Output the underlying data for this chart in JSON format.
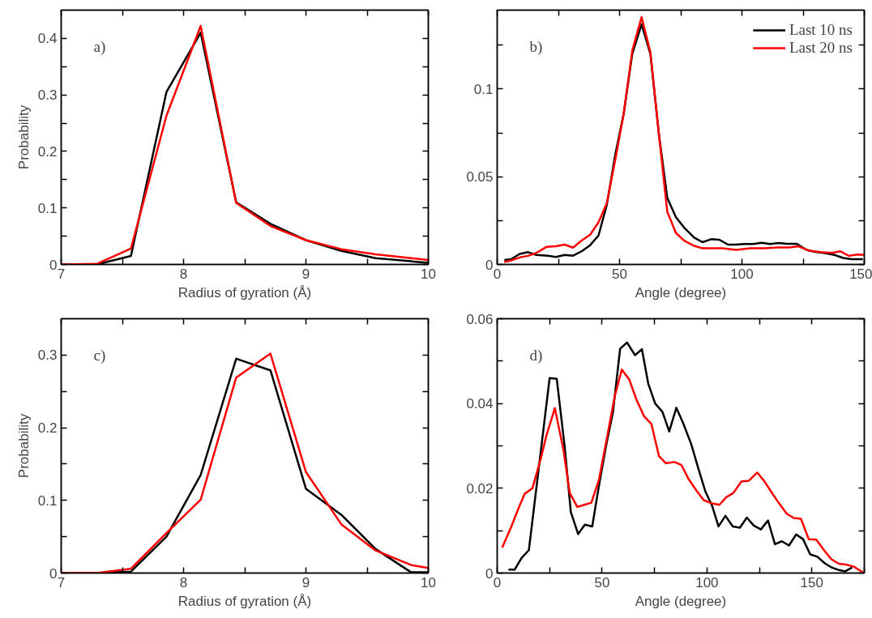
{
  "chart_data": [
    {
      "type": "line",
      "xlabel": "Radius of gyration (Å)",
      "ylabel": "Probability",
      "annotations": [
        "a)"
      ],
      "xlim": [
        7,
        10
      ],
      "xticks": [
        7,
        {
          "value": 7.5,
          "label": null
        },
        8,
        {
          "value": 8.5,
          "label": null
        },
        9,
        {
          "value": 9.5,
          "label": null
        },
        10
      ],
      "ylim": [
        0,
        0.45
      ],
      "yticks": [
        0,
        {
          "value": 0.05,
          "label": null
        },
        0.1,
        {
          "value": 0.15,
          "label": null
        },
        0.2,
        {
          "value": 0.25,
          "label": null
        },
        0.3,
        {
          "value": 0.35,
          "label": null
        },
        0.4
      ],
      "series": [
        {
          "color": "#000000",
          "x": [
            7,
            7.29,
            7.57,
            7.86,
            8.14,
            8.43,
            8.71,
            9.0,
            9.29,
            9.57,
            10
          ],
          "values": [
            0,
            0,
            0.015,
            0.305,
            0.41,
            0.11,
            0.072,
            0.043,
            0.024,
            0.011,
            0.003
          ]
        },
        {
          "color": "#ff0000",
          "x": [
            7,
            7.29,
            7.57,
            7.86,
            8.14,
            8.43,
            8.71,
            9.0,
            9.29,
            9.57,
            10
          ],
          "values": [
            0,
            0.001,
            0.028,
            0.263,
            0.422,
            0.109,
            0.068,
            0.043,
            0.027,
            0.018,
            0.008
          ]
        }
      ]
    },
    {
      "type": "line",
      "xlabel": "Angle (degree)",
      "annotations": [
        "b)"
      ],
      "legend": "top right",
      "xlim": [
        0,
        150
      ],
      "xticks": [
        0,
        {
          "value": 25,
          "label": null
        },
        50,
        {
          "value": 75,
          "label": null
        },
        100,
        {
          "value": 125,
          "label": null
        },
        150
      ],
      "ylim": [
        0,
        0.145
      ],
      "yticks": [
        0,
        {
          "value": 0.025,
          "label": null
        },
        0.05,
        {
          "value": 0.075,
          "label": null
        },
        0.1,
        {
          "value": 0.125,
          "label": null
        }
      ],
      "series": [
        {
          "name": "Last 10 ns",
          "color": "#000000",
          "x": [
            2.9,
            5.7,
            9.2,
            12.6,
            16,
            20.7,
            24,
            27.6,
            31,
            34.5,
            38,
            41.4,
            44.8,
            48.3,
            51.7,
            55.2,
            59,
            62.6,
            66.1,
            69.5,
            73,
            76.4,
            80.5,
            83.9,
            87.4,
            90.8,
            94.3,
            97.7,
            101,
            104.6,
            108,
            111.5,
            115,
            118.4,
            122.4,
            126.4,
            129.9,
            133.3,
            137.9,
            141.4,
            144.8,
            149.4
          ],
          "values": [
            0.0026,
            0.003,
            0.006,
            0.007,
            0.0054,
            0.005,
            0.0043,
            0.0054,
            0.005,
            0.0075,
            0.011,
            0.0165,
            0.034,
            0.063,
            0.086,
            0.12,
            0.137,
            0.12,
            0.074,
            0.038,
            0.027,
            0.021,
            0.0153,
            0.0127,
            0.0144,
            0.0141,
            0.0113,
            0.0113,
            0.0117,
            0.0117,
            0.0123,
            0.0117,
            0.0122,
            0.0118,
            0.0118,
            0.0083,
            0.0071,
            0.0066,
            0.0054,
            0.0037,
            0.003,
            0.003
          ]
        },
        {
          "name": "Last 20 ns",
          "color": "#ff0000",
          "x": [
            2.9,
            5.7,
            9.2,
            12.6,
            16,
            20.1,
            24,
            27.6,
            31,
            34.5,
            38,
            41.4,
            44.8,
            48.3,
            51.7,
            55.2,
            59,
            62.6,
            66.1,
            69.5,
            73,
            76.4,
            80.5,
            83.9,
            87.4,
            92,
            97.7,
            103.4,
            109.2,
            115,
            119.5,
            123,
            127.6,
            132.2,
            136.8,
            140.2,
            143.7,
            147.1,
            150
          ],
          "values": [
            0.0014,
            0.0023,
            0.004,
            0.0049,
            0.0066,
            0.01,
            0.0104,
            0.0113,
            0.0096,
            0.0136,
            0.017,
            0.024,
            0.035,
            0.06,
            0.086,
            0.122,
            0.141,
            0.121,
            0.074,
            0.03,
            0.018,
            0.0136,
            0.0106,
            0.0092,
            0.0092,
            0.0092,
            0.0083,
            0.0092,
            0.0092,
            0.0097,
            0.0097,
            0.0104,
            0.0078,
            0.007,
            0.0066,
            0.0075,
            0.0049,
            0.0057,
            0.0054
          ]
        }
      ]
    },
    {
      "type": "line",
      "xlabel": "Radius of gyration (Å)",
      "ylabel": "Probability",
      "annotations": [
        "c)"
      ],
      "xlim": [
        7,
        10
      ],
      "xticks": [
        7,
        {
          "value": 7.5,
          "label": null
        },
        8,
        {
          "value": 8.5,
          "label": null
        },
        9,
        {
          "value": 9.5,
          "label": null
        },
        10
      ],
      "ylim": [
        0,
        0.35
      ],
      "yticks": [
        0,
        {
          "value": 0.05,
          "label": null
        },
        0.1,
        {
          "value": 0.15,
          "label": null
        },
        0.2,
        {
          "value": 0.25,
          "label": null
        },
        0.3
      ],
      "series": [
        {
          "color": "#000000",
          "x": [
            7,
            7.29,
            7.57,
            7.86,
            8.14,
            8.43,
            8.71,
            9.0,
            9.29,
            9.57,
            9.86,
            10
          ],
          "values": [
            0,
            0,
            0.002,
            0.05,
            0.135,
            0.295,
            0.279,
            0.116,
            0.08,
            0.033,
            0.001,
            0.001
          ]
        },
        {
          "color": "#ff0000",
          "x": [
            7,
            7.29,
            7.57,
            7.86,
            8.14,
            8.43,
            8.71,
            9.0,
            9.29,
            9.57,
            9.86,
            10
          ],
          "values": [
            0,
            0,
            0.006,
            0.055,
            0.101,
            0.269,
            0.302,
            0.139,
            0.067,
            0.031,
            0.011,
            0.007
          ]
        }
      ]
    },
    {
      "type": "line",
      "xlabel": "Angle (degree)",
      "annotations": [
        "d)"
      ],
      "xlim": [
        0,
        175
      ],
      "xticks": [
        0,
        {
          "value": 25,
          "label": null
        },
        50,
        {
          "value": 75,
          "label": null
        },
        100,
        {
          "value": 125,
          "label": null
        },
        150,
        {
          "value": 175,
          "label": null
        }
      ],
      "ylim": [
        0,
        0.06
      ],
      "yticks": [
        0,
        {
          "value": 0.01,
          "label": null
        },
        0.02,
        {
          "value": 0.03,
          "label": null
        },
        0.04,
        {
          "value": 0.05,
          "label": null
        },
        0.06
      ],
      "series": [
        {
          "color": "#000000",
          "x": [
            5.4,
            8.3,
            11.7,
            15.1,
            25,
            28.4,
            32.2,
            35.1,
            38.6,
            41.8,
            45.3,
            48.3,
            51.9,
            55.2,
            58.6,
            61.9,
            65.7,
            69,
            72,
            75.3,
            78.8,
            82,
            85.4,
            88.7,
            92.5,
            95.8,
            99.2,
            102.5,
            105.5,
            108.8,
            112.3,
            115.7,
            119,
            122.3,
            125.7,
            129.1,
            132.4,
            135.7,
            139.1,
            142.5,
            145.8,
            149.2,
            152.5,
            156.2,
            159.5,
            162.9,
            165.9,
            169.2
          ],
          "values": [
            0.0008,
            0.0008,
            0.0036,
            0.0054,
            0.046,
            0.0458,
            0.0297,
            0.0144,
            0.0092,
            0.0114,
            0.011,
            0.02,
            0.03,
            0.038,
            0.0529,
            0.0544,
            0.0514,
            0.0528,
            0.0447,
            0.04,
            0.038,
            0.0334,
            0.039,
            0.0353,
            0.0304,
            0.0248,
            0.0193,
            0.0158,
            0.011,
            0.0135,
            0.011,
            0.0107,
            0.0131,
            0.0112,
            0.0103,
            0.0124,
            0.0068,
            0.0075,
            0.0065,
            0.0091,
            0.008,
            0.0044,
            0.0039,
            0.0023,
            0.0013,
            0.0007,
            0.0004,
            0.0013
          ]
        },
        {
          "color": "#ff0000",
          "x": [
            2.4,
            6.7,
            10,
            13.1,
            16.8,
            20.8,
            23.5,
            27.5,
            31.5,
            34.6,
            38.2,
            41.6,
            44.9,
            48.5,
            52.3,
            56,
            59.4,
            63,
            66.4,
            70,
            73.5,
            77.1,
            80.4,
            84.5,
            87.8,
            91.2,
            95.2,
            98.5,
            101.9,
            105.9,
            109.2,
            112.6,
            116.4,
            120,
            124,
            127.3,
            130.7,
            134,
            138,
            141.4,
            144.8,
            148.5,
            152.1,
            155.5,
            159.2,
            162.9,
            166.2,
            170,
            174.3
          ],
          "values": [
            0.006,
            0.0109,
            0.0151,
            0.0187,
            0.02,
            0.027,
            0.0325,
            0.0389,
            0.0293,
            0.0189,
            0.0156,
            0.0161,
            0.0166,
            0.022,
            0.0318,
            0.0416,
            0.048,
            0.0456,
            0.0409,
            0.037,
            0.0352,
            0.0276,
            0.0259,
            0.0262,
            0.0255,
            0.0222,
            0.0193,
            0.0172,
            0.0165,
            0.0161,
            0.0179,
            0.0189,
            0.0216,
            0.0218,
            0.0237,
            0.0217,
            0.0191,
            0.0167,
            0.014,
            0.013,
            0.0128,
            0.008,
            0.0079,
            0.0056,
            0.0033,
            0.0022,
            0.002,
            0.0015,
            0.0002
          ]
        }
      ]
    }
  ]
}
